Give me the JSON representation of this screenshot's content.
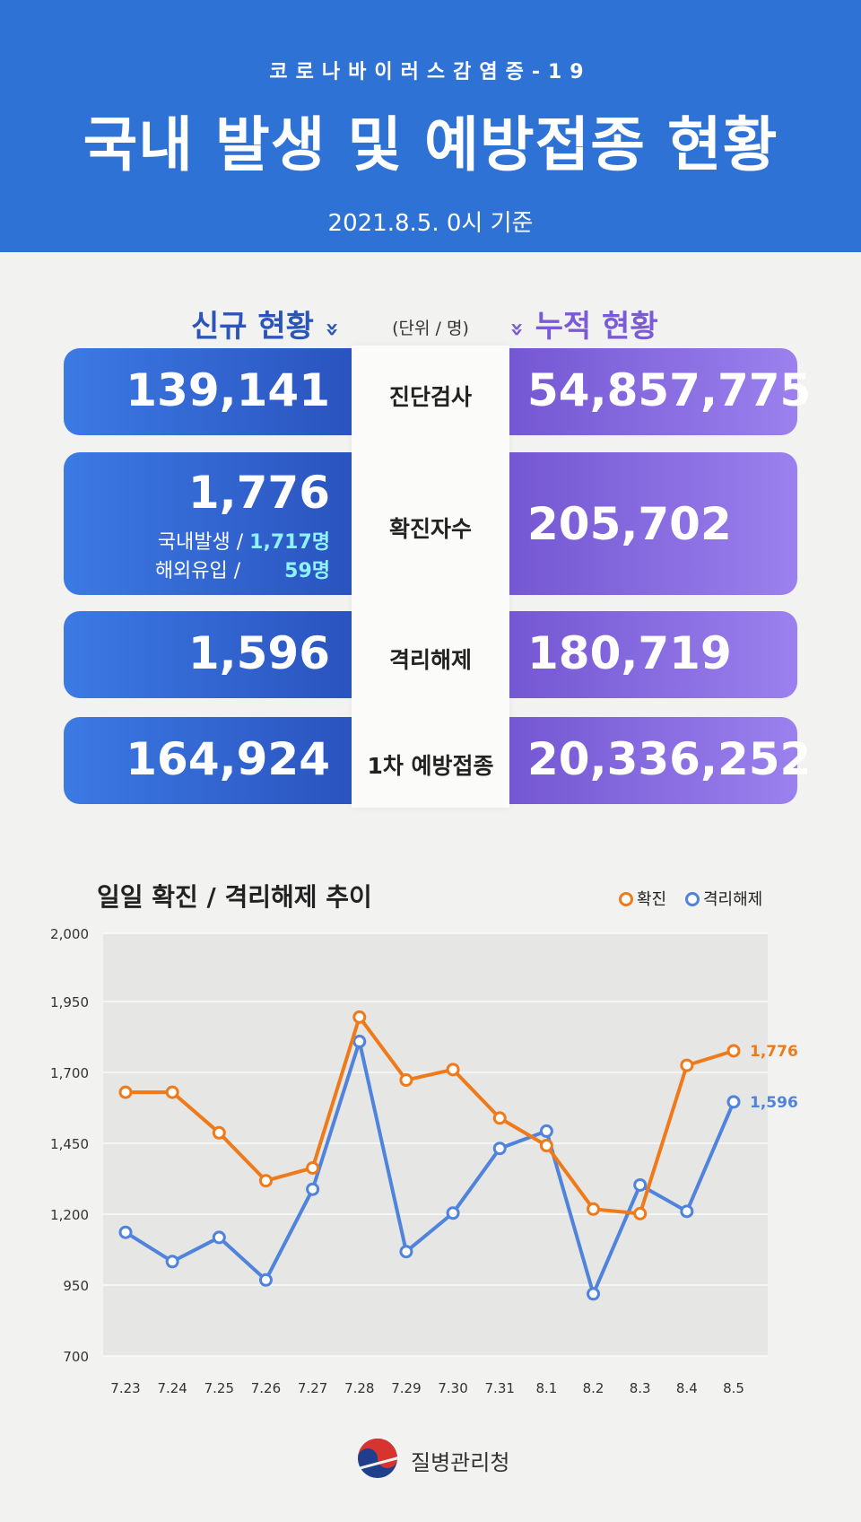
{
  "header": {
    "subtitle": "코로나바이러스감염증-19",
    "title": "국내 발생 및 예방접종 현황",
    "date": "2021.8.5. 0시 기준"
  },
  "columns": {
    "new_label": "신규 현황",
    "cumulative_label": "누적 현황",
    "unit": "(단위 / 명)",
    "chevron": "»"
  },
  "rows": [
    {
      "label": "진단검사",
      "new": "139,141",
      "cumulative": "54,857,775"
    },
    {
      "label": "확진자수",
      "new": "1,776",
      "cumulative": "205,702",
      "details": [
        {
          "label": "국내발생 / ",
          "value": "1,717명"
        },
        {
          "label": "해외유입 /       ",
          "value": "59명"
        }
      ]
    },
    {
      "label": "격리해제",
      "new": "1,596",
      "cumulative": "180,719"
    },
    {
      "label": "1차 예방접종",
      "new": "164,924",
      "cumulative": "20,336,252"
    }
  ],
  "chart_title": "일일 확진 / 격리해제 추이",
  "legend": {
    "confirmed": "확진",
    "released": "격리해제"
  },
  "colors": {
    "confirmed": "#ef7a1a",
    "released": "#4f83dc",
    "header": "#2f72d6",
    "new_card": "#2f5fc9",
    "cum_card": "#8467dc"
  },
  "chart_data": {
    "type": "line",
    "title": "일일 확진 / 격리해제 추이",
    "categories": [
      "7.23",
      "7.24",
      "7.25",
      "7.26",
      "7.27",
      "7.28",
      "7.29",
      "7.30",
      "7.31",
      "8.1",
      "8.2",
      "8.3",
      "8.4",
      "8.5"
    ],
    "y_ticks": [
      "700",
      "950",
      "1,200",
      "1,450",
      "1,700",
      "1,950",
      "2,000"
    ],
    "series": [
      {
        "name": "확진",
        "values": [
          1630,
          1630,
          1487,
          1318,
          1363,
          1895,
          1673,
          1710,
          1539,
          1442,
          1218,
          1202,
          1725,
          1776
        ],
        "end_label": "1,776"
      },
      {
        "name": "격리해제",
        "values": [
          1136,
          1033,
          1118,
          968,
          1288,
          1809,
          1068,
          1204,
          1432,
          1493,
          919,
          1303,
          1210,
          1596
        ],
        "end_label": "1,596"
      }
    ],
    "grid": true,
    "legend_position": "top-right"
  },
  "footer": {
    "org": "질병관리청"
  }
}
